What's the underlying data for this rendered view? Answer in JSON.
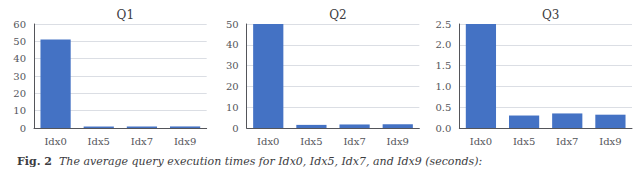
{
  "chart_data": [
    {
      "type": "bar",
      "title": "Q1",
      "categories": [
        "Idx0",
        "Idx5",
        "Idx7",
        "Idx9"
      ],
      "values": [
        51.0,
        0.85,
        0.85,
        0.9
      ],
      "color": "#4472C4",
      "ylim": [
        0,
        60
      ],
      "yticks": [
        0,
        10,
        20,
        30,
        40,
        50,
        60
      ],
      "grid": true
    },
    {
      "type": "bar",
      "title": "Q2",
      "categories": [
        "Idx0",
        "Idx5",
        "Idx7",
        "Idx9"
      ],
      "values": [
        50.0,
        1.5,
        1.7,
        1.8
      ],
      "color": "#4472C4",
      "ylim": [
        0,
        50
      ],
      "yticks": [
        0,
        10,
        20,
        30,
        40,
        50
      ],
      "grid": true
    },
    {
      "type": "bar",
      "title": "Q3",
      "categories": [
        "Idx0",
        "Idx5",
        "Idx7",
        "Idx9"
      ],
      "values": [
        2.5,
        0.3,
        0.35,
        0.32
      ],
      "color": "#4472C4",
      "ylim": [
        0,
        2.5
      ],
      "yticks": [
        {
          "value": 0,
          "label": "0.0"
        },
        0.5,
        {
          "value": 1.0,
          "label": "1.0"
        },
        1.5,
        {
          "value": 2.0,
          "label": "2.0"
        },
        2.5
      ],
      "grid": true
    }
  ],
  "caption": [
    "Fig. 2",
    "The average query execution times for Idx0, Idx5, Idx7, and Idx9 (seconds):"
  ]
}
